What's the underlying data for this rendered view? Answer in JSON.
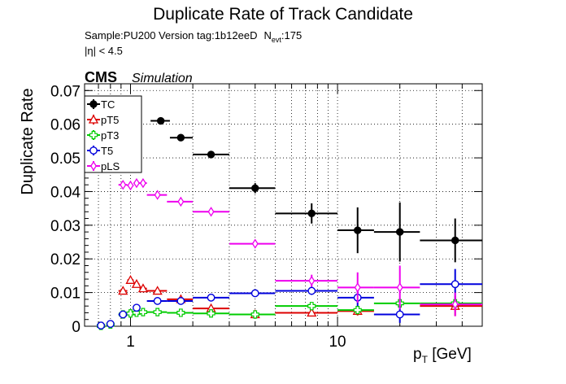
{
  "chart_data": {
    "type": "scatter",
    "title": "Duplicate Rate of Track Candidate",
    "info": {
      "line1": "Sample:PU200   Version tag:1b12eeD",
      "nevt_prefix": "N",
      "nevt_sub": "evt",
      "nevt_value": ":175",
      "line2": "|η| < 4.5"
    },
    "cms_label": "CMS",
    "cms_sub": "Simulation",
    "xlabel_main": "p",
    "xlabel_sub": "T",
    "xlabel_unit": " [GeV]",
    "ylabel": "Duplicate Rate",
    "xscale": "log",
    "xlim": [
      0.6,
      50
    ],
    "ylim": [
      0,
      0.072
    ],
    "yticks": [
      0,
      0.01,
      0.02,
      0.03,
      0.04,
      0.05,
      0.06,
      0.07
    ],
    "ytick_labels": [
      "0",
      "0.01",
      "0.02",
      "0.03",
      "0.04",
      "0.05",
      "0.06",
      "0.07"
    ],
    "xticks": [
      1,
      10
    ],
    "xtick_labels": [
      "1",
      "10"
    ],
    "grid": true,
    "legend_position": "top-left",
    "series": [
      {
        "name": "TC",
        "color": "#000000",
        "marker": "filled-circle",
        "points": [
          {
            "x": 1.4,
            "xlo": 1.25,
            "xhi": 1.55,
            "y": 0.061,
            "yerr": 0.0008
          },
          {
            "x": 1.75,
            "xlo": 1.55,
            "xhi": 2.0,
            "y": 0.056,
            "yerr": 0.0009
          },
          {
            "x": 2.45,
            "xlo": 2.0,
            "xhi": 3.0,
            "y": 0.051,
            "yerr": 0.001
          },
          {
            "x": 4.0,
            "xlo": 3.0,
            "xhi": 5.0,
            "y": 0.041,
            "yerr": 0.0015
          },
          {
            "x": 7.5,
            "xlo": 5.0,
            "xhi": 10.0,
            "y": 0.0335,
            "yerr": 0.003
          },
          {
            "x": 12.5,
            "xlo": 10.0,
            "xhi": 15.0,
            "y": 0.0285,
            "yerr": 0.0068
          },
          {
            "x": 20.0,
            "xlo": 15.0,
            "xhi": 25.0,
            "y": 0.028,
            "yerr": 0.0088
          },
          {
            "x": 37.0,
            "xlo": 25.0,
            "xhi": 50.0,
            "y": 0.0255,
            "yerr": 0.0065
          }
        ]
      },
      {
        "name": "pT5",
        "color": "#dd0000",
        "marker": "open-triangle",
        "points": [
          {
            "x": 0.92,
            "xlo": 0.875,
            "xhi": 0.965,
            "y": 0.0105,
            "yerr": 0.0005
          },
          {
            "x": 1.0,
            "xlo": 0.965,
            "xhi": 1.035,
            "y": 0.0137,
            "yerr": 0.0005
          },
          {
            "x": 1.07,
            "xlo": 1.035,
            "xhi": 1.105,
            "y": 0.0125,
            "yerr": 0.0005
          },
          {
            "x": 1.15,
            "xlo": 1.105,
            "xhi": 1.2,
            "y": 0.0112,
            "yerr": 0.0005
          },
          {
            "x": 1.35,
            "xlo": 1.2,
            "xhi": 1.5,
            "y": 0.0105,
            "yerr": 0.0004
          },
          {
            "x": 1.75,
            "xlo": 1.5,
            "xhi": 2.0,
            "y": 0.008,
            "yerr": 0.0004
          },
          {
            "x": 2.45,
            "xlo": 2.0,
            "xhi": 3.0,
            "y": 0.0053,
            "yerr": 0.0004
          },
          {
            "x": 4.0,
            "xlo": 3.0,
            "xhi": 5.0,
            "y": 0.0035,
            "yerr": 0.0004
          },
          {
            "x": 7.5,
            "xlo": 5.0,
            "xhi": 10.0,
            "y": 0.004,
            "yerr": 0.001
          },
          {
            "x": 12.5,
            "xlo": 10.0,
            "xhi": 15.0,
            "y": 0.0045,
            "yerr": 0.0013
          },
          {
            "x": 37.0,
            "xlo": 25.0,
            "xhi": 50.0,
            "y": 0.006,
            "yerr": 0.003
          }
        ]
      },
      {
        "name": "pT3",
        "color": "#00cc00",
        "marker": "open-cross",
        "points": [
          {
            "x": 0.72,
            "xlo": 0.7,
            "xhi": 0.75,
            "y": 0.0001,
            "yerr": 0.0003
          },
          {
            "x": 0.8,
            "xlo": 0.775,
            "xhi": 0.825,
            "y": 0.0005,
            "yerr": 0.0003
          },
          {
            "x": 0.92,
            "xlo": 0.875,
            "xhi": 0.965,
            "y": 0.0035,
            "yerr": 0.0003
          },
          {
            "x": 1.0,
            "xlo": 0.965,
            "xhi": 1.035,
            "y": 0.0038,
            "yerr": 0.0003
          },
          {
            "x": 1.07,
            "xlo": 1.035,
            "xhi": 1.105,
            "y": 0.004,
            "yerr": 0.0003
          },
          {
            "x": 1.15,
            "xlo": 1.105,
            "xhi": 1.2,
            "y": 0.0042,
            "yerr": 0.0003
          },
          {
            "x": 1.35,
            "xlo": 1.2,
            "xhi": 1.5,
            "y": 0.0042,
            "yerr": 0.0003
          },
          {
            "x": 1.75,
            "xlo": 1.5,
            "xhi": 2.0,
            "y": 0.004,
            "yerr": 0.0003
          },
          {
            "x": 2.45,
            "xlo": 2.0,
            "xhi": 3.0,
            "y": 0.0038,
            "yerr": 0.0003
          },
          {
            "x": 4.0,
            "xlo": 3.0,
            "xhi": 5.0,
            "y": 0.0035,
            "yerr": 0.0004
          },
          {
            "x": 7.5,
            "xlo": 5.0,
            "xhi": 10.0,
            "y": 0.006,
            "yerr": 0.0008
          },
          {
            "x": 12.5,
            "xlo": 10.0,
            "xhi": 15.0,
            "y": 0.0048,
            "yerr": 0.0012
          },
          {
            "x": 20.0,
            "xlo": 15.0,
            "xhi": 25.0,
            "y": 0.0068,
            "yerr": 0.0015
          },
          {
            "x": 37.0,
            "xlo": 25.0,
            "xhi": 50.0,
            "y": 0.0068,
            "yerr": 0.0015
          }
        ]
      },
      {
        "name": "T5",
        "color": "#0000dd",
        "marker": "open-circle",
        "points": [
          {
            "x": 0.72,
            "xlo": 0.7,
            "xhi": 0.75,
            "y": 0.0002,
            "yerr": 0.0003
          },
          {
            "x": 0.8,
            "xlo": 0.775,
            "xhi": 0.825,
            "y": 0.0007,
            "yerr": 0.0003
          },
          {
            "x": 0.92,
            "xlo": 0.875,
            "xhi": 0.965,
            "y": 0.0035,
            "yerr": 0.0003
          },
          {
            "x": 1.07,
            "xlo": 1.035,
            "xhi": 1.105,
            "y": 0.0055,
            "yerr": 0.0003
          },
          {
            "x": 1.35,
            "xlo": 1.2,
            "xhi": 1.5,
            "y": 0.0075,
            "yerr": 0.0003
          },
          {
            "x": 1.75,
            "xlo": 1.5,
            "xhi": 2.0,
            "y": 0.0075,
            "yerr": 0.0003
          },
          {
            "x": 2.45,
            "xlo": 2.0,
            "xhi": 3.0,
            "y": 0.0085,
            "yerr": 0.0004
          },
          {
            "x": 4.0,
            "xlo": 3.0,
            "xhi": 5.0,
            "y": 0.0098,
            "yerr": 0.0005
          },
          {
            "x": 7.5,
            "xlo": 5.0,
            "xhi": 10.0,
            "y": 0.0105,
            "yerr": 0.0012
          },
          {
            "x": 12.5,
            "xlo": 10.0,
            "xhi": 15.0,
            "y": 0.0085,
            "yerr": 0.0025
          },
          {
            "x": 20.0,
            "xlo": 15.0,
            "xhi": 25.0,
            "y": 0.0035,
            "yerr": 0.0025
          },
          {
            "x": 37.0,
            "xlo": 25.0,
            "xhi": 50.0,
            "y": 0.0125,
            "yerr": 0.0045
          }
        ]
      },
      {
        "name": "pLS",
        "color": "#ee00ee",
        "marker": "open-diamond",
        "points": [
          {
            "x": 0.92,
            "xlo": 0.875,
            "xhi": 0.965,
            "y": 0.042,
            "yerr": 0.0006
          },
          {
            "x": 1.0,
            "xlo": 0.965,
            "xhi": 1.035,
            "y": 0.0418,
            "yerr": 0.0008
          },
          {
            "x": 1.07,
            "xlo": 1.035,
            "xhi": 1.105,
            "y": 0.0425,
            "yerr": 0.0007
          },
          {
            "x": 1.15,
            "xlo": 1.105,
            "xhi": 1.2,
            "y": 0.0425,
            "yerr": 0.0007
          },
          {
            "x": 1.35,
            "xlo": 1.2,
            "xhi": 1.5,
            "y": 0.039,
            "yerr": 0.0005
          },
          {
            "x": 1.75,
            "xlo": 1.5,
            "xhi": 2.0,
            "y": 0.037,
            "yerr": 0.0005
          },
          {
            "x": 2.45,
            "xlo": 2.0,
            "xhi": 3.0,
            "y": 0.034,
            "yerr": 0.0006
          },
          {
            "x": 4.0,
            "xlo": 3.0,
            "xhi": 5.0,
            "y": 0.0245,
            "yerr": 0.001
          },
          {
            "x": 7.5,
            "xlo": 5.0,
            "xhi": 10.0,
            "y": 0.0135,
            "yerr": 0.0018
          },
          {
            "x": 12.5,
            "xlo": 10.0,
            "xhi": 15.0,
            "y": 0.0115,
            "yerr": 0.0045
          },
          {
            "x": 20.0,
            "xlo": 15.0,
            "xhi": 25.0,
            "y": 0.0115,
            "yerr": 0.0065
          },
          {
            "x": 37.0,
            "xlo": 25.0,
            "xhi": 50.0,
            "y": 0.0065,
            "yerr": 0.0035
          }
        ]
      }
    ]
  }
}
